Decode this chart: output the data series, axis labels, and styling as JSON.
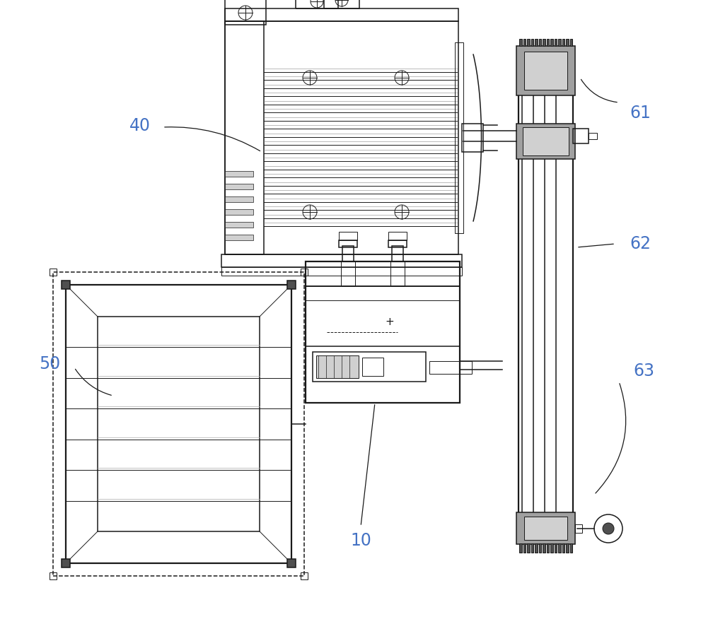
{
  "bg_color": "#ffffff",
  "line_color": "#1a1a1a",
  "gray_fill": "#a0a0a0",
  "light_gray": "#d0d0d0",
  "dark_gray": "#505050",
  "label_color": "#4472c4",
  "lw_thin": 0.7,
  "lw_med": 1.1,
  "lw_thick": 1.6
}
